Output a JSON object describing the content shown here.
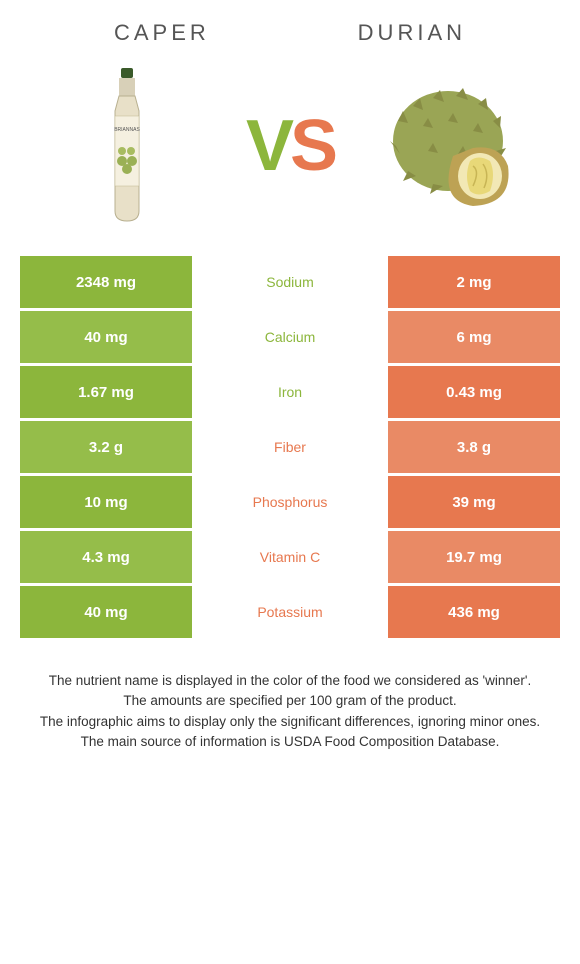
{
  "palette": {
    "left_row": "#8cb63c",
    "left_row_alt": "#95bd4a",
    "right_row": "#e7784f",
    "right_row_alt": "#e98a65",
    "text_white": "#ffffff"
  },
  "header": {
    "left_title": "Caper",
    "right_title": "Durian",
    "vs_v": "V",
    "vs_s": "S"
  },
  "rows": [
    {
      "left": "2348 mg",
      "label": "Sodium",
      "right": "2 mg",
      "winner": "left"
    },
    {
      "left": "40 mg",
      "label": "Calcium",
      "right": "6 mg",
      "winner": "left"
    },
    {
      "left": "1.67 mg",
      "label": "Iron",
      "right": "0.43 mg",
      "winner": "left"
    },
    {
      "left": "3.2 g",
      "label": "Fiber",
      "right": "3.8 g",
      "winner": "right"
    },
    {
      "left": "10 mg",
      "label": "Phosphorus",
      "right": "39 mg",
      "winner": "right"
    },
    {
      "left": "4.3 mg",
      "label": "Vitamin C",
      "right": "19.7 mg",
      "winner": "right"
    },
    {
      "left": "40 mg",
      "label": "Potassium",
      "right": "436 mg",
      "winner": "right"
    }
  ],
  "footer": {
    "line1": "The nutrient name is displayed in the color of the food we considered as 'winner'.",
    "line2": "The amounts are specified per 100 gram of the product.",
    "line3": "The infographic aims to display only the significant differences, ignoring minor ones.",
    "line4": "The main source of information is USDA Food Composition Database."
  }
}
